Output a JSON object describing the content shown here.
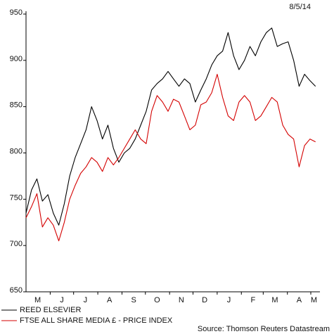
{
  "chart_data": {
    "type": "line",
    "date_label": "8/5/14",
    "source": "Source: Thomson Reuters Datastream",
    "ylim": [
      650,
      950
    ],
    "yticks": [
      650,
      700,
      750,
      800,
      850,
      900,
      950
    ],
    "x_range": [
      "2013-05-01",
      "2014-05-10"
    ],
    "month_labels": [
      "M",
      "J",
      "J",
      "A",
      "S",
      "O",
      "N",
      "D",
      "J",
      "F",
      "M",
      "A",
      "M"
    ],
    "month_label_dates": [
      "2013-05-16",
      "2013-06-16",
      "2013-07-16",
      "2013-08-16",
      "2013-09-16",
      "2013-10-16",
      "2013-11-16",
      "2013-12-16",
      "2014-01-16",
      "2014-02-16",
      "2014-03-16",
      "2014-04-16",
      "2014-05-05"
    ],
    "month_tick_dates": [
      "2013-06-01",
      "2013-07-01",
      "2013-08-01",
      "2013-09-01",
      "2013-10-01",
      "2013-11-01",
      "2013-12-01",
      "2014-01-01",
      "2014-02-01",
      "2014-03-01",
      "2014-04-01",
      "2014-05-01"
    ],
    "series": [
      {
        "name": "REED ELSEVIER",
        "color": "#000000",
        "x": [
          "2013-05-01",
          "2013-05-08",
          "2013-05-15",
          "2013-05-22",
          "2013-05-29",
          "2013-06-05",
          "2013-06-12",
          "2013-06-19",
          "2013-06-26",
          "2013-07-03",
          "2013-07-10",
          "2013-07-17",
          "2013-07-24",
          "2013-07-31",
          "2013-08-07",
          "2013-08-14",
          "2013-08-21",
          "2013-08-28",
          "2013-09-04",
          "2013-09-11",
          "2013-09-18",
          "2013-09-25",
          "2013-10-02",
          "2013-10-09",
          "2013-10-16",
          "2013-10-23",
          "2013-10-30",
          "2013-11-06",
          "2013-11-13",
          "2013-11-20",
          "2013-11-27",
          "2013-12-04",
          "2013-12-11",
          "2013-12-18",
          "2013-12-25",
          "2014-01-01",
          "2014-01-08",
          "2014-01-15",
          "2014-01-22",
          "2014-01-29",
          "2014-02-05",
          "2014-02-12",
          "2014-02-19",
          "2014-02-26",
          "2014-03-05",
          "2014-03-12",
          "2014-03-19",
          "2014-03-26",
          "2014-04-02",
          "2014-04-09",
          "2014-04-16",
          "2014-04-23",
          "2014-04-30",
          "2014-05-07"
        ],
        "values": [
          735,
          760,
          772,
          748,
          755,
          735,
          722,
          745,
          775,
          795,
          810,
          825,
          850,
          835,
          815,
          830,
          805,
          790,
          800,
          805,
          815,
          830,
          845,
          868,
          875,
          880,
          888,
          880,
          872,
          880,
          875,
          855,
          868,
          880,
          895,
          905,
          910,
          930,
          905,
          890,
          900,
          915,
          905,
          920,
          930,
          935,
          915,
          918,
          920,
          900,
          872,
          885,
          878,
          872
        ]
      },
      {
        "name": "FTSE ALL SHARE MEDIA £ - PRICE INDEX",
        "color": "#d40000",
        "x": [
          "2013-05-01",
          "2013-05-08",
          "2013-05-15",
          "2013-05-22",
          "2013-05-29",
          "2013-06-05",
          "2013-06-12",
          "2013-06-19",
          "2013-06-26",
          "2013-07-03",
          "2013-07-10",
          "2013-07-17",
          "2013-07-24",
          "2013-07-31",
          "2013-08-07",
          "2013-08-14",
          "2013-08-21",
          "2013-08-28",
          "2013-09-04",
          "2013-09-11",
          "2013-09-18",
          "2013-09-25",
          "2013-10-02",
          "2013-10-09",
          "2013-10-16",
          "2013-10-23",
          "2013-10-30",
          "2013-11-06",
          "2013-11-13",
          "2013-11-20",
          "2013-11-27",
          "2013-12-04",
          "2013-12-11",
          "2013-12-18",
          "2013-12-25",
          "2014-01-01",
          "2014-01-08",
          "2014-01-15",
          "2014-01-22",
          "2014-01-29",
          "2014-02-05",
          "2014-02-12",
          "2014-02-19",
          "2014-02-26",
          "2014-03-05",
          "2014-03-12",
          "2014-03-19",
          "2014-03-26",
          "2014-04-02",
          "2014-04-09",
          "2014-04-16",
          "2014-04-23",
          "2014-04-30",
          "2014-05-07"
        ],
        "values": [
          730,
          742,
          756,
          720,
          730,
          722,
          705,
          725,
          750,
          765,
          778,
          785,
          795,
          790,
          780,
          795,
          787,
          795,
          805,
          815,
          825,
          815,
          810,
          845,
          862,
          855,
          845,
          858,
          855,
          840,
          825,
          830,
          852,
          855,
          865,
          885,
          860,
          840,
          835,
          855,
          862,
          855,
          835,
          840,
          850,
          860,
          855,
          830,
          820,
          815,
          785,
          808,
          815,
          812
        ]
      }
    ]
  }
}
